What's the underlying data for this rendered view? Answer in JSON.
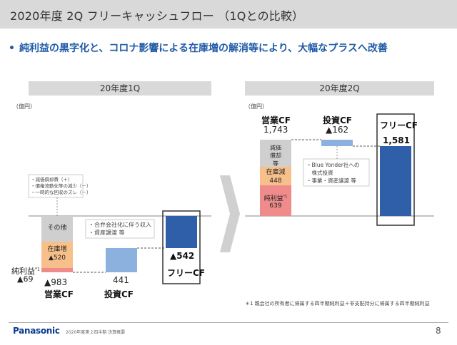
{
  "slide": {
    "title": "2020年度 2Q フリーキャッシュフロー （1Qとの比較）",
    "bullet": "純利益の黒字化と、コロナ影響による在庫増の解消等により、大幅なプラスへ改善",
    "footer_company": "Panasonic",
    "footer_text": "2020年度第２四半期 決算概要",
    "page_number": "8",
    "footnote": "＊1 親会社の所有者に帰属する四半期純利益＋非支配持分に帰属する四半期純利益"
  },
  "colors": {
    "accent_blue": "#1f5aa6",
    "dark_blue": "#2e5fa8",
    "light_blue": "#8db1de",
    "orange": "#f7c08a",
    "pink": "#f08b8b",
    "gray": "#cfcfcf"
  },
  "q1": {
    "header": "20年度1Q",
    "unit": "（億円）",
    "annotation_lines": [
      "・減価償却費（＋）",
      "・債権流動化等の減少（－）",
      "・一時的な回収のズレ（－）"
    ],
    "net_income_label": "純利益",
    "net_income_mark": "*1",
    "net_income_value": "▲69",
    "other_label": "その他",
    "inventory_label": "在庫増",
    "inventory_value": "▲520",
    "operating_value": "▲983",
    "operating_label": "営業CF",
    "investing_notes": [
      "・合弁会社化に伴う収入",
      "・資産譲渡 等"
    ],
    "investing_value": "441",
    "investing_label": "投資CF",
    "free_value": "▲542",
    "free_label": "フリーCF"
  },
  "q2": {
    "header": "20年度2Q",
    "unit": "（億円）",
    "operating_label": "営業CF",
    "operating_value": "1,743",
    "depreciation_label": "減価償却等",
    "inventory_label": "在庫減",
    "inventory_value": "448",
    "net_income_label": "純利益",
    "net_income_mark": "*1",
    "net_income_value": "639",
    "investing_label": "投資CF",
    "investing_value": "▲162",
    "investing_notes": [
      "・Blue Yonder社への",
      "　株式投資",
      "・事業・資産譲渡 等"
    ],
    "free_label": "フリーCF",
    "free_value": "1,581"
  },
  "chart_data": [
    {
      "type": "bar",
      "title": "20年度1Q",
      "ylabel": "億円",
      "categories": [
        "営業CF",
        "投資CF",
        "フリーCF"
      ],
      "values": [
        -983,
        441,
        -542
      ],
      "operating_breakdown": [
        {
          "name": "純利益",
          "value": -69
        },
        {
          "name": "在庫増",
          "value": -520
        },
        {
          "name": "その他",
          "value": -394
        }
      ]
    },
    {
      "type": "bar",
      "title": "20年度2Q",
      "ylabel": "億円",
      "categories": [
        "営業CF",
        "投資CF",
        "フリーCF"
      ],
      "values": [
        1743,
        -162,
        1581
      ],
      "operating_breakdown": [
        {
          "name": "純利益",
          "value": 639
        },
        {
          "name": "在庫減",
          "value": 448
        },
        {
          "name": "減価償却等",
          "value": 656
        }
      ]
    }
  ]
}
